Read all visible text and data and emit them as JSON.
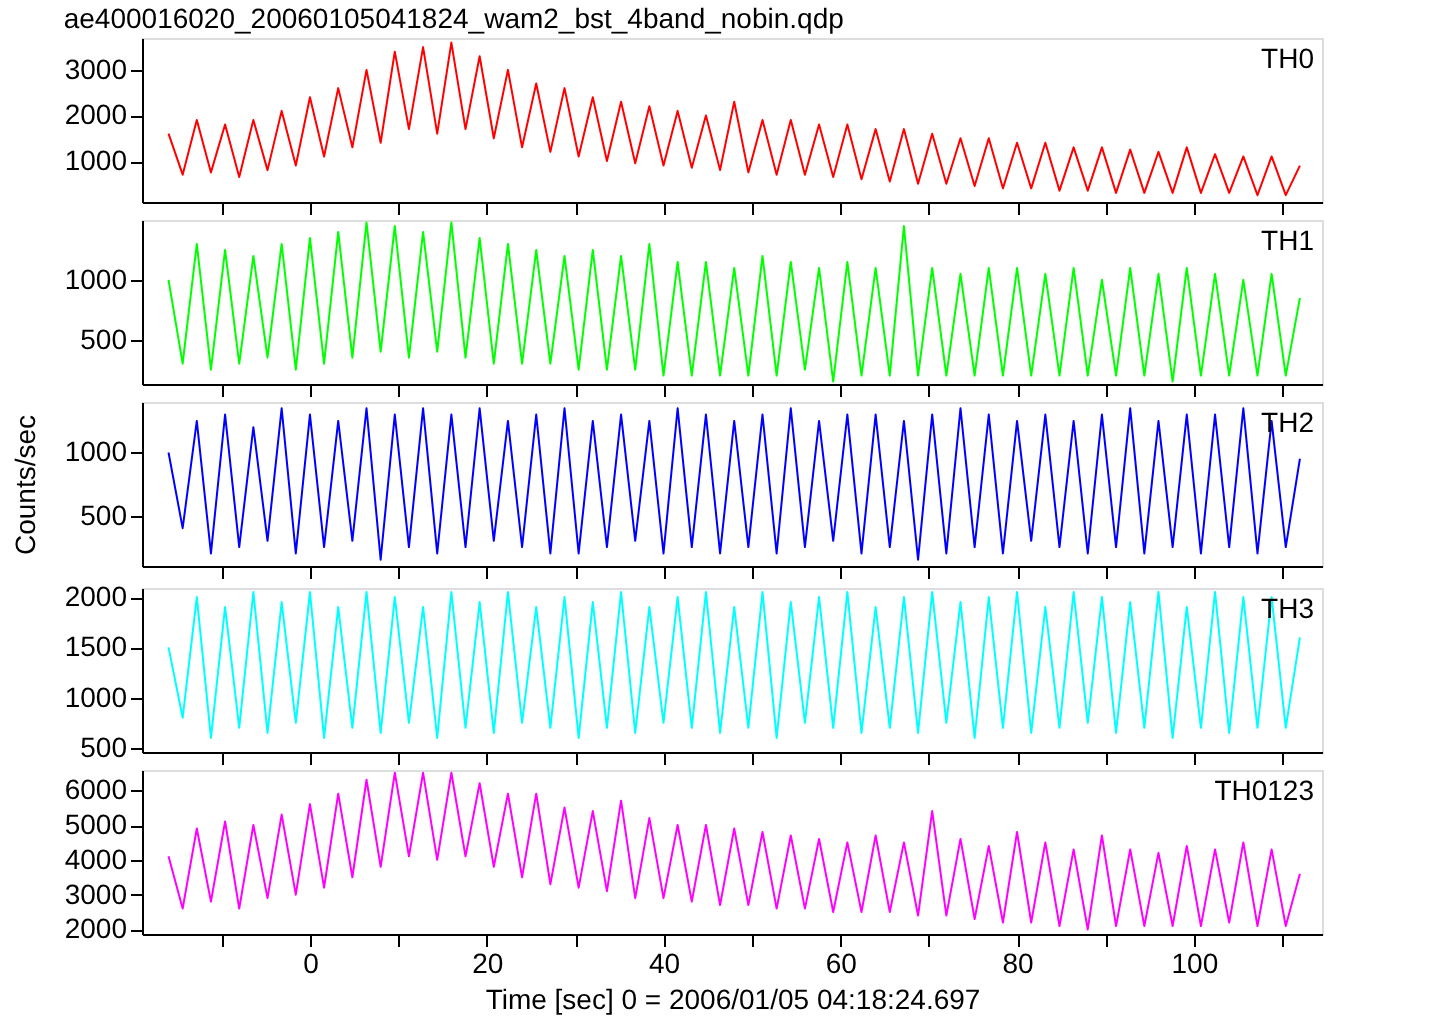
{
  "chart_data": [
    {
      "type": "line",
      "title": "ae400016020_20060105041824_wam2_bst_4band_nobin.qdp",
      "tick_labels": "y",
      "xlim": [
        -19,
        114.5
      ],
      "ylim": [
        100,
        3700
      ],
      "yticks": [
        1000,
        2000,
        3000
      ],
      "xticks": [
        {
          "value": -10,
          "label": null
        },
        0,
        {
          "value": 10,
          "label": null
        },
        20,
        {
          "value": 30,
          "label": null
        },
        40,
        {
          "value": 50,
          "label": null
        },
        60,
        {
          "value": 70,
          "label": null
        },
        80,
        {
          "value": 90,
          "label": null
        },
        100,
        {
          "value": 110,
          "label": null
        }
      ],
      "x": [
        -16,
        -14.4,
        -12.8,
        -11.2,
        -9.6,
        -8,
        -6.4,
        -4.8,
        -3.2,
        -1.6,
        0,
        1.6,
        3.2,
        4.8,
        6.4,
        8,
        9.6,
        11.2,
        12.8,
        14.4,
        16,
        17.6,
        19.2,
        20.8,
        22.4,
        24,
        25.6,
        27.2,
        28.8,
        30.4,
        32,
        33.6,
        35.2,
        36.8,
        38.4,
        40,
        41.6,
        43.2,
        44.8,
        46.4,
        48,
        49.6,
        51.2,
        52.8,
        54.4,
        56,
        57.6,
        59.2,
        60.8,
        62.4,
        64,
        65.6,
        67.2,
        68.8,
        70.4,
        72,
        73.6,
        75.2,
        76.8,
        78.4,
        80,
        81.6,
        83.2,
        84.8,
        86.4,
        88,
        89.6,
        91.2,
        92.8,
        94.4,
        96,
        97.6,
        99.2,
        100.8,
        102.4,
        104,
        105.6,
        107.2,
        108.8,
        110.4,
        112
      ],
      "series": [
        {
          "name": "TH0",
          "color": "#ff0000",
          "values": [
            1600,
            700,
            1900,
            750,
            1800,
            650,
            1900,
            800,
            2100,
            900,
            2400,
            1100,
            2600,
            1300,
            3000,
            1400,
            3400,
            1700,
            3500,
            1600,
            3600,
            1700,
            3300,
            1500,
            3000,
            1300,
            2700,
            1200,
            2600,
            1100,
            2400,
            1000,
            2300,
            950,
            2200,
            900,
            2100,
            850,
            2000,
            800,
            2300,
            750,
            1900,
            700,
            1900,
            700,
            1800,
            650,
            1800,
            600,
            1700,
            550,
            1700,
            500,
            1600,
            500,
            1500,
            450,
            1500,
            400,
            1400,
            400,
            1400,
            350,
            1300,
            350,
            1300,
            300,
            1250,
            300,
            1200,
            300,
            1300,
            300,
            1150,
            300,
            1100,
            250,
            1100,
            250,
            900
          ]
        }
      ]
    },
    {
      "type": "line",
      "tick_labels": "y",
      "xlim": [
        -19,
        114.5
      ],
      "ylim": [
        130,
        1500
      ],
      "yticks": [
        500,
        1000
      ],
      "xticks": [
        {
          "value": -10,
          "label": null
        },
        0,
        {
          "value": 10,
          "label": null
        },
        20,
        {
          "value": 30,
          "label": null
        },
        40,
        {
          "value": 50,
          "label": null
        },
        60,
        {
          "value": 70,
          "label": null
        },
        80,
        {
          "value": 90,
          "label": null
        },
        100,
        {
          "value": 110,
          "label": null
        }
      ],
      "x": [
        -16,
        -14.4,
        -12.8,
        -11.2,
        -9.6,
        -8,
        -6.4,
        -4.8,
        -3.2,
        -1.6,
        0,
        1.6,
        3.2,
        4.8,
        6.4,
        8,
        9.6,
        11.2,
        12.8,
        14.4,
        16,
        17.6,
        19.2,
        20.8,
        22.4,
        24,
        25.6,
        27.2,
        28.8,
        30.4,
        32,
        33.6,
        35.2,
        36.8,
        38.4,
        40,
        41.6,
        43.2,
        44.8,
        46.4,
        48,
        49.6,
        51.2,
        52.8,
        54.4,
        56,
        57.6,
        59.2,
        60.8,
        62.4,
        64,
        65.6,
        67.2,
        68.8,
        70.4,
        72,
        73.6,
        75.2,
        76.8,
        78.4,
        80,
        81.6,
        83.2,
        84.8,
        86.4,
        88,
        89.6,
        91.2,
        92.8,
        94.4,
        96,
        97.6,
        99.2,
        100.8,
        102.4,
        104,
        105.6,
        107.2,
        108.8,
        110.4,
        112
      ],
      "series": [
        {
          "name": "TH1",
          "color": "#00ff00",
          "values": [
            1000,
            300,
            1300,
            250,
            1250,
            300,
            1200,
            350,
            1300,
            250,
            1350,
            300,
            1400,
            350,
            1480,
            400,
            1450,
            350,
            1400,
            400,
            1480,
            350,
            1350,
            300,
            1300,
            300,
            1250,
            300,
            1200,
            250,
            1250,
            250,
            1200,
            250,
            1300,
            200,
            1150,
            200,
            1150,
            200,
            1100,
            200,
            1200,
            200,
            1150,
            250,
            1100,
            150,
            1150,
            200,
            1100,
            200,
            1450,
            200,
            1100,
            200,
            1050,
            200,
            1100,
            200,
            1100,
            200,
            1050,
            200,
            1100,
            200,
            1000,
            200,
            1100,
            200,
            1050,
            150,
            1100,
            200,
            1050,
            200,
            1000,
            200,
            1050,
            200,
            850
          ]
        }
      ]
    },
    {
      "type": "line",
      "tick_labels": "y",
      "ylabel": "Counts/sec",
      "xlim": [
        -19,
        114.5
      ],
      "ylim": [
        100,
        1400
      ],
      "yticks": [
        500,
        1000
      ],
      "xticks": [
        {
          "value": -10,
          "label": null
        },
        0,
        {
          "value": 10,
          "label": null
        },
        20,
        {
          "value": 30,
          "label": null
        },
        40,
        {
          "value": 50,
          "label": null
        },
        60,
        {
          "value": 70,
          "label": null
        },
        80,
        {
          "value": 90,
          "label": null
        },
        100,
        {
          "value": 110,
          "label": null
        }
      ],
      "x": [
        -16,
        -14.4,
        -12.8,
        -11.2,
        -9.6,
        -8,
        -6.4,
        -4.8,
        -3.2,
        -1.6,
        0,
        1.6,
        3.2,
        4.8,
        6.4,
        8,
        9.6,
        11.2,
        12.8,
        14.4,
        16,
        17.6,
        19.2,
        20.8,
        22.4,
        24,
        25.6,
        27.2,
        28.8,
        30.4,
        32,
        33.6,
        35.2,
        36.8,
        38.4,
        40,
        41.6,
        43.2,
        44.8,
        46.4,
        48,
        49.6,
        51.2,
        52.8,
        54.4,
        56,
        57.6,
        59.2,
        60.8,
        62.4,
        64,
        65.6,
        67.2,
        68.8,
        70.4,
        72,
        73.6,
        75.2,
        76.8,
        78.4,
        80,
        81.6,
        83.2,
        84.8,
        86.4,
        88,
        89.6,
        91.2,
        92.8,
        94.4,
        96,
        97.6,
        99.2,
        100.8,
        102.4,
        104,
        105.6,
        107.2,
        108.8,
        110.4,
        112
      ],
      "series": [
        {
          "name": "TH2",
          "color": "#0000ff",
          "values": [
            1000,
            400,
            1250,
            200,
            1300,
            250,
            1200,
            300,
            1350,
            200,
            1300,
            250,
            1250,
            300,
            1350,
            150,
            1300,
            250,
            1350,
            200,
            1300,
            250,
            1350,
            300,
            1250,
            250,
            1300,
            200,
            1350,
            200,
            1250,
            250,
            1300,
            300,
            1250,
            200,
            1350,
            250,
            1300,
            200,
            1250,
            250,
            1300,
            200,
            1350,
            250,
            1250,
            300,
            1300,
            200,
            1300,
            250,
            1250,
            150,
            1300,
            200,
            1350,
            250,
            1300,
            200,
            1250,
            300,
            1300,
            250,
            1250,
            200,
            1300,
            250,
            1350,
            200,
            1250,
            250,
            1300,
            200,
            1300,
            250,
            1350,
            200,
            1250,
            250,
            950
          ]
        }
      ]
    },
    {
      "type": "line",
      "tick_labels": "y",
      "xlim": [
        -19,
        114.5
      ],
      "ylim": [
        460,
        2090
      ],
      "yticks": [
        500,
        1000,
        1500,
        2000
      ],
      "xticks": [
        {
          "value": -10,
          "label": null
        },
        0,
        {
          "value": 10,
          "label": null
        },
        20,
        {
          "value": 30,
          "label": null
        },
        40,
        {
          "value": 50,
          "label": null
        },
        60,
        {
          "value": 70,
          "label": null
        },
        80,
        {
          "value": 90,
          "label": null
        },
        100,
        {
          "value": 110,
          "label": null
        }
      ],
      "x": [
        -16,
        -14.4,
        -12.8,
        -11.2,
        -9.6,
        -8,
        -6.4,
        -4.8,
        -3.2,
        -1.6,
        0,
        1.6,
        3.2,
        4.8,
        6.4,
        8,
        9.6,
        11.2,
        12.8,
        14.4,
        16,
        17.6,
        19.2,
        20.8,
        22.4,
        24,
        25.6,
        27.2,
        28.8,
        30.4,
        32,
        33.6,
        35.2,
        36.8,
        38.4,
        40,
        41.6,
        43.2,
        44.8,
        46.4,
        48,
        49.6,
        51.2,
        52.8,
        54.4,
        56,
        57.6,
        59.2,
        60.8,
        62.4,
        64,
        65.6,
        67.2,
        68.8,
        70.4,
        72,
        73.6,
        75.2,
        76.8,
        78.4,
        80,
        81.6,
        83.2,
        84.8,
        86.4,
        88,
        89.6,
        91.2,
        92.8,
        94.4,
        96,
        97.6,
        99.2,
        100.8,
        102.4,
        104,
        105.6,
        107.2,
        108.8,
        110.4,
        112
      ],
      "series": [
        {
          "name": "TH3",
          "color": "#00ffff",
          "values": [
            1500,
            800,
            2000,
            600,
            1900,
            700,
            2050,
            650,
            1950,
            750,
            2050,
            600,
            1900,
            700,
            2050,
            650,
            2000,
            750,
            1900,
            600,
            2050,
            700,
            1950,
            650,
            2050,
            750,
            1900,
            700,
            2000,
            600,
            1950,
            700,
            2050,
            650,
            1900,
            750,
            2000,
            700,
            2050,
            650,
            1900,
            700,
            2050,
            600,
            1950,
            750,
            2000,
            700,
            2050,
            650,
            1900,
            700,
            2000,
            650,
            2050,
            750,
            1950,
            600,
            2000,
            700,
            2050,
            650,
            1900,
            700,
            2050,
            750,
            2000,
            650,
            1950,
            700,
            2050,
            600,
            1900,
            700,
            2050,
            650,
            2000,
            700,
            2000,
            700,
            1600
          ]
        }
      ]
    },
    {
      "type": "line",
      "xlabel": "Time [sec] 0 = 2006/01/05 04:18:24.697",
      "xlim": [
        -19,
        114.5
      ],
      "ylim": [
        1870,
        6580
      ],
      "yticks": [
        2000,
        3000,
        4000,
        5000,
        6000
      ],
      "xticks": [
        {
          "value": -10,
          "label": null
        },
        0,
        {
          "value": 10,
          "label": null
        },
        20,
        {
          "value": 30,
          "label": null
        },
        40,
        {
          "value": 50,
          "label": null
        },
        60,
        {
          "value": 70,
          "label": null
        },
        80,
        {
          "value": 90,
          "label": null
        },
        100,
        {
          "value": 110,
          "label": null
        }
      ],
      "x": [
        -16,
        -14.4,
        -12.8,
        -11.2,
        -9.6,
        -8,
        -6.4,
        -4.8,
        -3.2,
        -1.6,
        0,
        1.6,
        3.2,
        4.8,
        6.4,
        8,
        9.6,
        11.2,
        12.8,
        14.4,
        16,
        17.6,
        19.2,
        20.8,
        22.4,
        24,
        25.6,
        27.2,
        28.8,
        30.4,
        32,
        33.6,
        35.2,
        36.8,
        38.4,
        40,
        41.6,
        43.2,
        44.8,
        46.4,
        48,
        49.6,
        51.2,
        52.8,
        54.4,
        56,
        57.6,
        59.2,
        60.8,
        62.4,
        64,
        65.6,
        67.2,
        68.8,
        70.4,
        72,
        73.6,
        75.2,
        76.8,
        78.4,
        80,
        81.6,
        83.2,
        84.8,
        86.4,
        88,
        89.6,
        91.2,
        92.8,
        94.4,
        96,
        97.6,
        99.2,
        100.8,
        102.4,
        104,
        105.6,
        107.2,
        108.8,
        110.4,
        112
      ],
      "series": [
        {
          "name": "TH0123",
          "color": "#ff00ff",
          "values": [
            4100,
            2600,
            4900,
            2800,
            5100,
            2600,
            5000,
            2900,
            5300,
            3000,
            5600,
            3200,
            5900,
            3500,
            6300,
            3800,
            6500,
            4100,
            6500,
            4000,
            6500,
            4100,
            6200,
            3800,
            5900,
            3500,
            5900,
            3300,
            5500,
            3200,
            5400,
            3100,
            5700,
            2900,
            5200,
            2900,
            5000,
            2800,
            5000,
            2700,
            4900,
            2700,
            4800,
            2600,
            4700,
            2600,
            4600,
            2500,
            4500,
            2500,
            4700,
            2500,
            4500,
            2400,
            5400,
            2400,
            4600,
            2300,
            4400,
            2200,
            4800,
            2200,
            4500,
            2100,
            4300,
            2000,
            4700,
            2100,
            4300,
            2100,
            4200,
            2100,
            4400,
            2100,
            4300,
            2200,
            4500,
            2100,
            4300,
            2100,
            3600
          ]
        }
      ]
    }
  ]
}
